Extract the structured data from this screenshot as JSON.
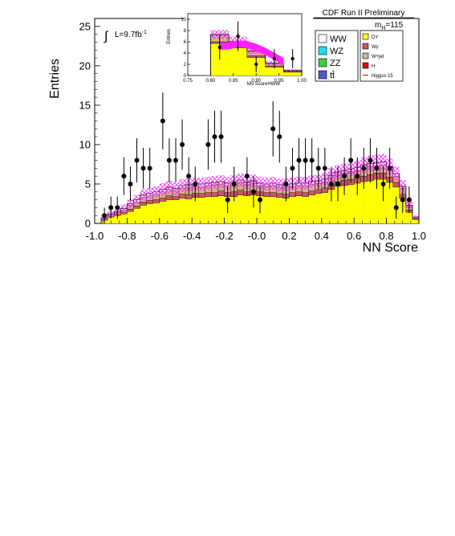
{
  "chart_data": [
    {
      "type": "bar",
      "title": "CDF Run II Preliminary",
      "xlabel": "NN Score",
      "ylabel": "Entries",
      "xlim": [
        -1.0,
        1.0
      ],
      "ylim": [
        0,
        26
      ],
      "x_ticks": [
        "-1.0",
        "-0.8",
        "-0.6",
        "-0.4",
        "-0.2",
        "-0.0",
        "0.2",
        "0.4",
        "0.6",
        "0.8",
        "1.0"
      ],
      "y_ticks": [
        "0",
        "5",
        "10",
        "15",
        "20",
        "25"
      ],
      "luminosity": "L=9.7fb",
      "luminosity_exp": "-1",
      "mass_label": "m",
      "mass_sub": "H",
      "mass_value": "=115",
      "legend_left": [
        {
          "label": "WW",
          "color": "#ffffff"
        },
        {
          "label": "WZ",
          "color": "#22ddee"
        },
        {
          "label": "ZZ",
          "color": "#44cc44"
        },
        {
          "label": "tt̄",
          "color": "#5555cc"
        }
      ],
      "legend_right": [
        {
          "label": "DY",
          "color": "#ffff00"
        },
        {
          "label": "Wγ",
          "color": "#cc5566"
        },
        {
          "label": "W+jet",
          "color": "#d2b48c"
        },
        {
          "label": "H",
          "color": "#ee0000"
        },
        {
          "label": "Higgsx 15",
          "color": "#ee0000"
        }
      ],
      "bin_edges": [
        -0.96,
        -0.92,
        -0.88,
        -0.84,
        -0.8,
        -0.76,
        -0.72,
        -0.68,
        -0.64,
        -0.6,
        -0.56,
        -0.52,
        -0.48,
        -0.44,
        -0.4,
        -0.36,
        -0.32,
        -0.28,
        -0.24,
        -0.2,
        -0.16,
        -0.12,
        -0.08,
        -0.04,
        0.0,
        0.04,
        0.08,
        0.12,
        0.16,
        0.2,
        0.24,
        0.28,
        0.32,
        0.36,
        0.4,
        0.44,
        0.48,
        0.52,
        0.56,
        0.6,
        0.64,
        0.68,
        0.72,
        0.76,
        0.8,
        0.84,
        0.88,
        0.92,
        0.96,
        1.0
      ],
      "stacks": {
        "DY": [
          0.4,
          0.8,
          1.0,
          1.2,
          1.5,
          1.9,
          2.3,
          2.5,
          2.6,
          2.8,
          3.0,
          3.0,
          3.2,
          3.1,
          3.3,
          3.3,
          3.4,
          3.4,
          3.5,
          3.4,
          3.4,
          3.6,
          3.5,
          3.6,
          3.5,
          3.4,
          3.4,
          3.3,
          3.2,
          3.4,
          3.5,
          3.4,
          3.6,
          3.8,
          3.9,
          4.3,
          4.7,
          4.8,
          4.9,
          5.1,
          5.3,
          5.4,
          5.6,
          5.6,
          5.2,
          4.6,
          3.2,
          1.4,
          0.5
        ],
        "Wgamma": [
          0.1,
          0.1,
          0.2,
          0.2,
          0.3,
          0.3,
          0.4,
          0.4,
          0.4,
          0.4,
          0.5,
          0.4,
          0.5,
          0.5,
          0.5,
          0.5,
          0.5,
          0.5,
          0.6,
          0.5,
          0.6,
          0.6,
          0.5,
          0.6,
          0.5,
          0.5,
          0.5,
          0.5,
          0.5,
          0.5,
          0.5,
          0.5,
          0.5,
          0.5,
          0.6,
          0.6,
          0.6,
          0.7,
          0.7,
          0.7,
          0.7,
          0.8,
          0.8,
          0.8,
          0.7,
          0.6,
          0.5,
          0.3,
          0.1
        ],
        "Wjet": [
          0.1,
          0.2,
          0.2,
          0.3,
          0.5,
          0.5,
          0.6,
          0.6,
          0.7,
          0.8,
          0.8,
          0.7,
          0.8,
          0.9,
          0.9,
          0.8,
          0.9,
          1.0,
          0.9,
          0.9,
          1.0,
          1.0,
          0.9,
          0.9,
          0.8,
          0.8,
          0.9,
          0.8,
          0.9,
          0.8,
          0.8,
          0.9,
          0.9,
          0.8,
          0.8,
          0.9,
          0.9,
          0.9,
          1.0,
          0.9,
          1.0,
          1.0,
          0.9,
          1.0,
          0.9,
          0.8,
          0.7,
          0.4,
          0.1
        ],
        "WW": [
          0.1,
          0.1,
          0.1,
          0.2,
          0.2,
          0.3,
          0.3,
          0.3,
          0.3,
          0.3,
          0.3,
          0.3,
          0.3,
          0.4,
          0.3,
          0.4,
          0.3,
          0.3,
          0.3,
          0.3,
          0.3,
          0.3,
          0.3,
          0.3,
          0.3,
          0.3,
          0.3,
          0.3,
          0.3,
          0.3,
          0.3,
          0.3,
          0.3,
          0.3,
          0.3,
          0.3,
          0.3,
          0.3,
          0.3,
          0.4,
          0.4,
          0.4,
          0.4,
          0.4,
          0.4,
          0.3,
          0.3,
          0.2,
          0.1
        ]
      },
      "uncertainty": [
        0.3,
        0.4,
        0.4,
        0.5,
        0.6,
        0.6,
        0.7,
        0.7,
        0.7,
        0.8,
        0.8,
        0.8,
        0.8,
        0.8,
        0.8,
        0.8,
        0.8,
        0.8,
        0.8,
        0.8,
        0.8,
        0.8,
        0.8,
        0.8,
        0.8,
        0.8,
        0.8,
        0.8,
        0.8,
        0.8,
        0.8,
        0.8,
        0.8,
        0.8,
        0.8,
        0.9,
        0.9,
        0.9,
        0.9,
        0.9,
        1.0,
        1.0,
        1.0,
        1.0,
        1.0,
        0.9,
        0.8,
        0.5,
        0.2
      ],
      "points": [
        {
          "x": -0.94,
          "y": 1,
          "err": 1.0
        },
        {
          "x": -0.9,
          "y": 2,
          "err": 1.4
        },
        {
          "x": -0.86,
          "y": 2,
          "err": 1.4
        },
        {
          "x": -0.82,
          "y": 6,
          "err": 2.4
        },
        {
          "x": -0.78,
          "y": 5,
          "err": 2.2
        },
        {
          "x": -0.74,
          "y": 8,
          "err": 2.8
        },
        {
          "x": -0.7,
          "y": 7,
          "err": 2.6
        },
        {
          "x": -0.66,
          "y": 7,
          "err": 2.6
        },
        {
          "x": -0.58,
          "y": 13,
          "err": 3.6
        },
        {
          "x": -0.54,
          "y": 8,
          "err": 2.8
        },
        {
          "x": -0.5,
          "y": 8,
          "err": 2.8
        },
        {
          "x": -0.46,
          "y": 10,
          "err": 3.2
        },
        {
          "x": -0.42,
          "y": 6,
          "err": 2.4
        },
        {
          "x": -0.38,
          "y": 5,
          "err": 2.2
        },
        {
          "x": -0.3,
          "y": 10,
          "err": 3.2
        },
        {
          "x": -0.26,
          "y": 11,
          "err": 3.3
        },
        {
          "x": -0.22,
          "y": 11,
          "err": 3.3
        },
        {
          "x": -0.18,
          "y": 3,
          "err": 1.7
        },
        {
          "x": -0.14,
          "y": 5,
          "err": 2.2
        },
        {
          "x": -0.06,
          "y": 6,
          "err": 2.4
        },
        {
          "x": -0.02,
          "y": 4,
          "err": 2.0
        },
        {
          "x": 0.02,
          "y": 3,
          "err": 1.7
        },
        {
          "x": 0.1,
          "y": 12,
          "err": 3.5
        },
        {
          "x": 0.14,
          "y": 11,
          "err": 3.3
        },
        {
          "x": 0.18,
          "y": 5,
          "err": 2.2
        },
        {
          "x": 0.22,
          "y": 7,
          "err": 2.6
        },
        {
          "x": 0.26,
          "y": 8,
          "err": 2.8
        },
        {
          "x": 0.3,
          "y": 8,
          "err": 2.8
        },
        {
          "x": 0.34,
          "y": 8,
          "err": 2.8
        },
        {
          "x": 0.38,
          "y": 7,
          "err": 2.6
        },
        {
          "x": 0.42,
          "y": 7,
          "err": 2.6
        },
        {
          "x": 0.46,
          "y": 5,
          "err": 2.2
        },
        {
          "x": 0.5,
          "y": 5,
          "err": 2.2
        },
        {
          "x": 0.54,
          "y": 6,
          "err": 2.4
        },
        {
          "x": 0.58,
          "y": 8,
          "err": 2.8
        },
        {
          "x": 0.62,
          "y": 6,
          "err": 2.4
        },
        {
          "x": 0.66,
          "y": 7,
          "err": 2.6
        },
        {
          "x": 0.7,
          "y": 8,
          "err": 2.8
        },
        {
          "x": 0.74,
          "y": 7,
          "err": 2.6
        },
        {
          "x": 0.78,
          "y": 5,
          "err": 2.2
        },
        {
          "x": 0.82,
          "y": 7,
          "err": 2.6
        },
        {
          "x": 0.86,
          "y": 2,
          "err": 1.4
        },
        {
          "x": 0.9,
          "y": 3,
          "err": 1.7
        },
        {
          "x": 0.94,
          "y": 3,
          "err": 1.7
        }
      ]
    },
    {
      "type": "bar",
      "xlabel": "NN ScoreHWW",
      "ylabel": "Entries",
      "xlim": [
        0.75,
        1.0
      ],
      "ylim": [
        0,
        11
      ],
      "x_ticks": [
        "0.75",
        "0.80",
        "0.85",
        "0.90",
        "0.95",
        "1.00"
      ],
      "y_ticks": [
        "0",
        "2",
        "4",
        "6",
        "8",
        "10"
      ],
      "bin_edges": [
        0.8,
        0.84,
        0.88,
        0.92,
        0.96,
        1.0
      ],
      "stacks": {
        "DY": [
          5.7,
          4.9,
          3.2,
          1.5,
          0.6
        ],
        "Wgamma": [
          0.3,
          0.3,
          0.3,
          0.2,
          0.1
        ],
        "Wjet": [
          1.2,
          0.8,
          0.8,
          0.4,
          0.1
        ],
        "WW": [
          0.1,
          0.1,
          0.1,
          0.1,
          0.1
        ]
      },
      "uncertainty": [
        0.8,
        0.8,
        0.6,
        0.4,
        0.2
      ],
      "signal": [
        {
          "x": 0.82,
          "y": 5.2
        },
        {
          "x": 0.84,
          "y": 5.3
        },
        {
          "x": 0.86,
          "y": 5.6
        },
        {
          "x": 0.88,
          "y": 5.5
        },
        {
          "x": 0.9,
          "y": 5.0
        },
        {
          "x": 0.92,
          "y": 4.3
        },
        {
          "x": 0.94,
          "y": 3.4
        },
        {
          "x": 0.96,
          "y": 2.5
        }
      ],
      "points": [
        {
          "x": 0.82,
          "y": 5,
          "err": 2.2
        },
        {
          "x": 0.86,
          "y": 7,
          "err": 2.6
        },
        {
          "x": 0.9,
          "y": 2,
          "err": 1.4
        },
        {
          "x": 0.94,
          "y": 3,
          "err": 1.7
        },
        {
          "x": 0.98,
          "y": 3,
          "err": 1.7
        }
      ]
    }
  ]
}
